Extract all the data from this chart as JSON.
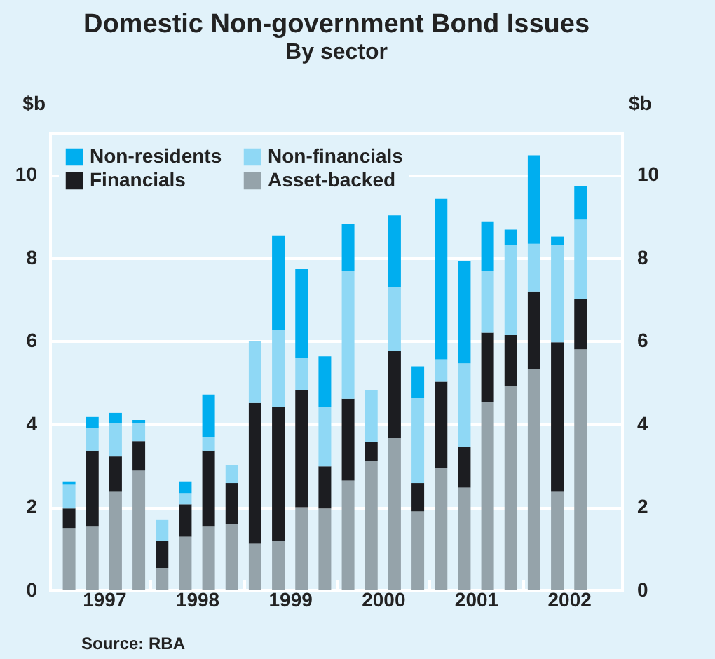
{
  "chart_data": {
    "type": "bar",
    "title": "Domestic Non-government Bond Issues",
    "subtitle": "By sector",
    "ylabel": "$b",
    "y2label": "$b",
    "stacked": true,
    "legend": "top left",
    "grid": "y",
    "x": [
      1997.125,
      1997.375,
      1997.625,
      1997.875,
      1998.125,
      1998.375,
      1998.625,
      1998.875,
      1999.125,
      1999.375,
      1999.625,
      1999.875,
      2000.125,
      2000.375,
      2000.625,
      2000.875,
      2001.125,
      2001.375,
      2001.625,
      2001.875,
      2002.125,
      2002.375,
      2002.625
    ],
    "xlim": [
      1997,
      2003
    ],
    "xticks": [
      {
        "value": 1997.5,
        "label": "1997"
      },
      {
        "value": 1998,
        "label": null
      },
      {
        "value": 1998.5,
        "label": "1998"
      },
      {
        "value": 1999,
        "label": null
      },
      {
        "value": 1999.5,
        "label": "1999"
      },
      {
        "value": 2000,
        "label": null
      },
      {
        "value": 2000.5,
        "label": "2000"
      },
      {
        "value": 2001,
        "label": null
      },
      {
        "value": 2001.5,
        "label": "2001"
      },
      {
        "value": 2002,
        "label": null
      },
      {
        "value": 2002.5,
        "label": "2002"
      }
    ],
    "ylim": [
      0,
      11
    ],
    "yticks": [
      0,
      2,
      4,
      6,
      8,
      10
    ],
    "y2lim": [
      0,
      11
    ],
    "y2ticks": [
      0,
      2,
      4,
      6,
      8,
      10
    ],
    "series": [
      {
        "name": "Asset-backed",
        "color": "#95a3aa",
        "values": [
          1.5,
          1.53,
          2.37,
          2.88,
          0.54,
          1.29,
          1.53,
          1.59,
          1.12,
          1.19,
          2.0,
          1.97,
          2.64,
          3.12,
          3.66,
          1.9,
          2.95,
          2.47,
          4.54,
          4.92,
          5.32,
          2.37,
          5.8
        ]
      },
      {
        "name": "Financials",
        "color": "#1c1d21",
        "values": [
          0.47,
          1.83,
          0.85,
          0.71,
          0.65,
          0.78,
          1.83,
          0.99,
          3.39,
          3.22,
          2.81,
          1.01,
          1.97,
          0.44,
          2.1,
          0.68,
          2.07,
          0.99,
          1.66,
          1.22,
          1.87,
          3.6,
          1.22
        ]
      },
      {
        "name": "Non-financials",
        "color": "#8fd8f5",
        "values": [
          0.57,
          0.54,
          0.81,
          0.44,
          0.5,
          0.27,
          0.33,
          0.44,
          1.49,
          1.86,
          0.78,
          1.43,
          3.08,
          1.25,
          1.53,
          2.06,
          0.54,
          2.0,
          1.49,
          2.17,
          1.15,
          2.34,
          1.9
        ]
      },
      {
        "name": "Non-residents",
        "color": "#00aeef",
        "values": [
          0.08,
          0.27,
          0.24,
          0.07,
          null,
          0.28,
          1.02,
          null,
          null,
          2.27,
          2.14,
          1.22,
          1.12,
          null,
          1.73,
          0.75,
          3.86,
          2.47,
          1.19,
          0.37,
          2.13,
          0.2,
          0.81
        ]
      }
    ],
    "annotations": [
      "Source: RBA"
    ]
  }
}
